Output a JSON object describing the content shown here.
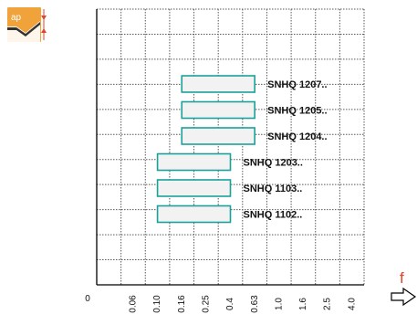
{
  "chart_data": {
    "type": "bar",
    "orientation": "horizontal-range",
    "title": "",
    "xlabel": "f",
    "ylabel": "",
    "x_ticks": [
      "0",
      "0.06",
      "0.10",
      "0.16",
      "0.25",
      "0.4",
      "0.63",
      "1.0",
      "1.6",
      "2.5",
      "4.0"
    ],
    "series": [
      {
        "label": "SNHQ 1207..",
        "x_start": "0.16",
        "x_end": "0.63"
      },
      {
        "label": "SNHQ 1205..",
        "x_start": "0.16",
        "x_end": "0.63"
      },
      {
        "label": "SNHQ 1204..",
        "x_start": "0.16",
        "x_end": "0.63"
      },
      {
        "label": "SNHQ 1203..",
        "x_start": "0.10",
        "x_end": "0.4"
      },
      {
        "label": "SNHQ 1103..",
        "x_start": "0.10",
        "x_end": "0.4"
      },
      {
        "label": "SNHQ 1102..",
        "x_start": "0.10",
        "x_end": "0.4"
      }
    ],
    "grid": true,
    "colors": {
      "bar_stroke": "#1aa19a",
      "bar_fill": "#f2f2f2",
      "accent": "#e3422d",
      "icon_bg": "#f0a23b"
    }
  },
  "badge": {
    "icon": "insert-depth-of-cut-icon",
    "text": "ap"
  }
}
